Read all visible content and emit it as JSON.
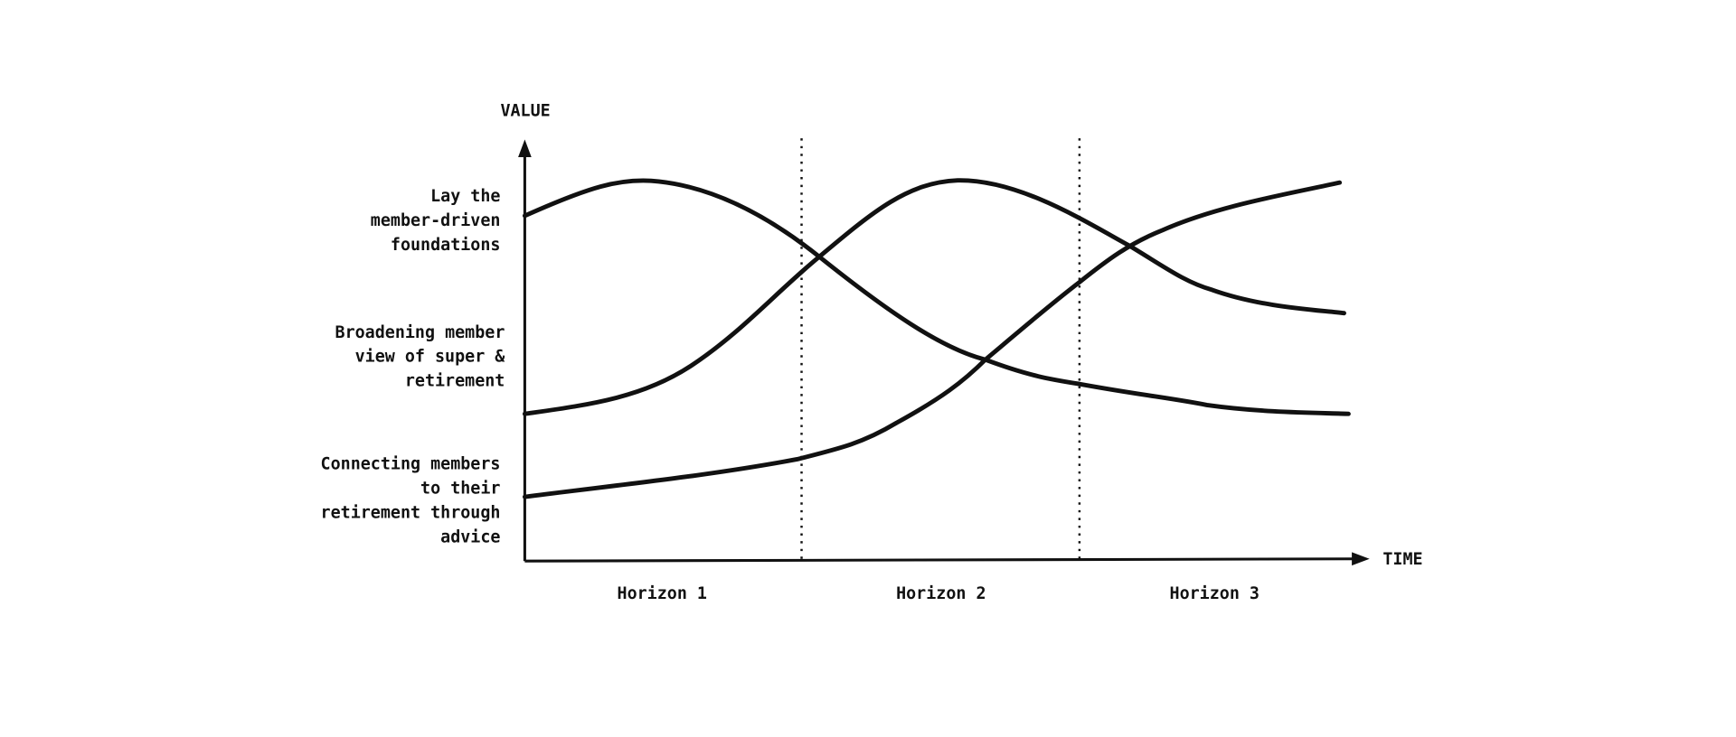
{
  "axes": {
    "y_label": "VALUE",
    "x_label": "TIME"
  },
  "rows": [
    {
      "lines": [
        "Lay the",
        "member-driven",
        "foundations"
      ]
    },
    {
      "lines": [
        "Broadening member",
        "view of super &",
        "retirement"
      ]
    },
    {
      "lines": [
        "Connecting members",
        "to their",
        "retirement through",
        "advice"
      ]
    }
  ],
  "horizons": [
    "Horizon 1",
    "Horizon 2",
    "Horizon 3"
  ]
}
